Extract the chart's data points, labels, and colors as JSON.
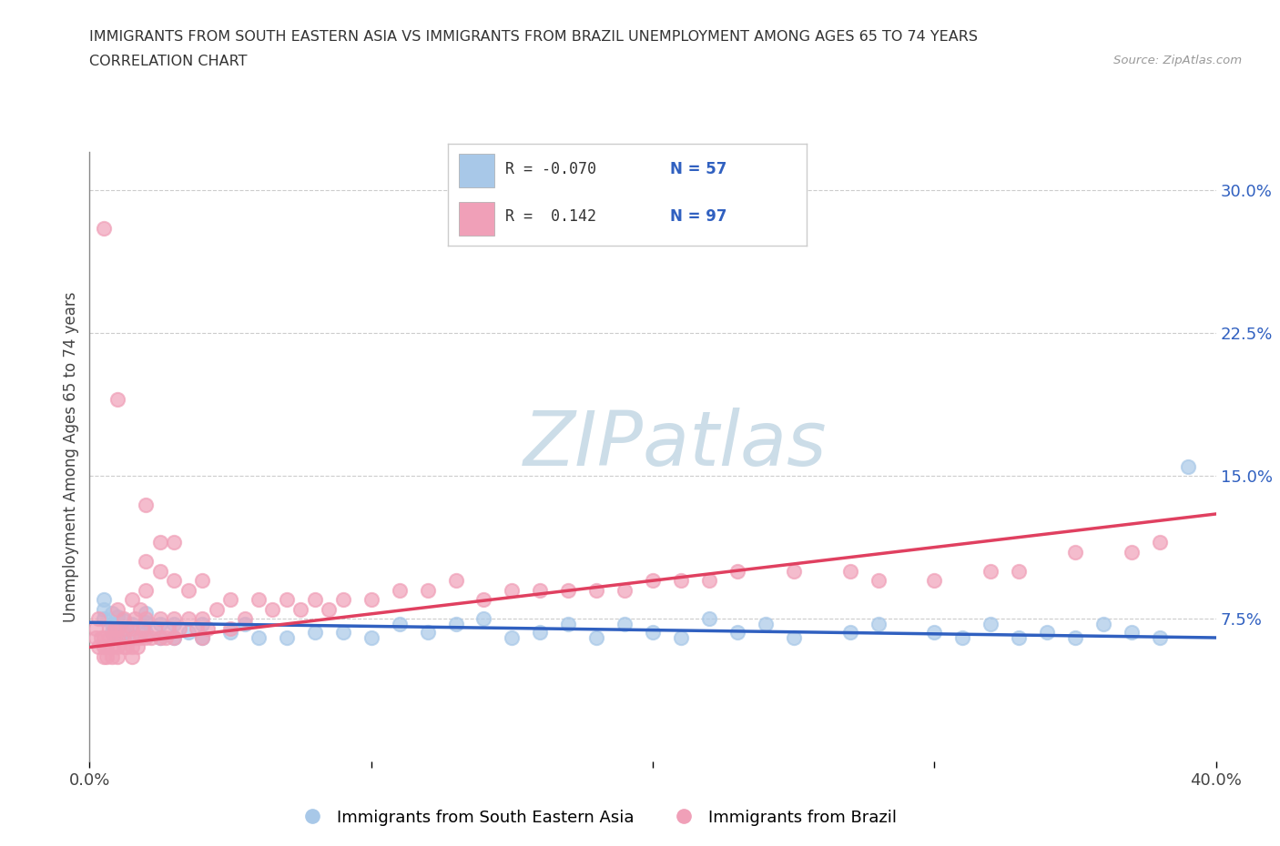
{
  "title_line1": "IMMIGRANTS FROM SOUTH EASTERN ASIA VS IMMIGRANTS FROM BRAZIL UNEMPLOYMENT AMONG AGES 65 TO 74 YEARS",
  "title_line2": "CORRELATION CHART",
  "source": "Source: ZipAtlas.com",
  "ylabel": "Unemployment Among Ages 65 to 74 years",
  "xlim": [
    0.0,
    0.4
  ],
  "ylim": [
    0.0,
    0.32
  ],
  "xticks": [
    0.0,
    0.1,
    0.2,
    0.3,
    0.4
  ],
  "xtick_labels": [
    "0.0%",
    "",
    "",
    "",
    "40.0%"
  ],
  "ytick_labels": [
    "",
    "7.5%",
    "15.0%",
    "22.5%",
    "30.0%"
  ],
  "yticks": [
    0.0,
    0.075,
    0.15,
    0.225,
    0.3
  ],
  "blue_color": "#a8c8e8",
  "pink_color": "#f0a0b8",
  "blue_line_color": "#3060c0",
  "pink_line_color": "#e04060",
  "grid_color": "#cccccc",
  "watermark_color": "#d8e8f0",
  "blue_R": -0.07,
  "blue_N": 57,
  "pink_R": 0.142,
  "pink_N": 97,
  "blue_trend_x0": 0.0,
  "blue_trend_y0": 0.073,
  "blue_trend_x1": 0.4,
  "blue_trend_y1": 0.065,
  "pink_trend_x0": 0.0,
  "pink_trend_y0": 0.06,
  "pink_trend_x1": 0.4,
  "pink_trend_y1": 0.13,
  "blue_scatter_x": [
    0.005,
    0.005,
    0.005,
    0.008,
    0.008,
    0.008,
    0.01,
    0.01,
    0.01,
    0.012,
    0.012,
    0.015,
    0.015,
    0.02,
    0.02,
    0.02,
    0.025,
    0.025,
    0.03,
    0.03,
    0.035,
    0.04,
    0.04,
    0.05,
    0.055,
    0.06,
    0.07,
    0.08,
    0.09,
    0.1,
    0.11,
    0.12,
    0.13,
    0.14,
    0.15,
    0.16,
    0.17,
    0.18,
    0.19,
    0.2,
    0.21,
    0.22,
    0.23,
    0.24,
    0.25,
    0.27,
    0.28,
    0.3,
    0.31,
    0.32,
    0.33,
    0.34,
    0.35,
    0.36,
    0.37,
    0.38,
    0.39
  ],
  "blue_scatter_y": [
    0.075,
    0.08,
    0.085,
    0.068,
    0.072,
    0.078,
    0.065,
    0.07,
    0.076,
    0.068,
    0.074,
    0.065,
    0.072,
    0.068,
    0.073,
    0.078,
    0.065,
    0.072,
    0.065,
    0.072,
    0.068,
    0.065,
    0.072,
    0.068,
    0.072,
    0.065,
    0.065,
    0.068,
    0.068,
    0.065,
    0.072,
    0.068,
    0.072,
    0.075,
    0.065,
    0.068,
    0.072,
    0.065,
    0.072,
    0.068,
    0.065,
    0.075,
    0.068,
    0.072,
    0.065,
    0.068,
    0.072,
    0.068,
    0.065,
    0.072,
    0.065,
    0.068,
    0.065,
    0.072,
    0.068,
    0.065,
    0.155
  ],
  "pink_scatter_x": [
    0.002,
    0.002,
    0.003,
    0.003,
    0.004,
    0.005,
    0.005,
    0.005,
    0.006,
    0.006,
    0.007,
    0.007,
    0.008,
    0.008,
    0.009,
    0.009,
    0.01,
    0.01,
    0.01,
    0.01,
    0.01,
    0.012,
    0.012,
    0.012,
    0.013,
    0.013,
    0.015,
    0.015,
    0.015,
    0.015,
    0.016,
    0.016,
    0.017,
    0.018,
    0.018,
    0.019,
    0.02,
    0.02,
    0.02,
    0.02,
    0.022,
    0.023,
    0.025,
    0.025,
    0.025,
    0.027,
    0.028,
    0.03,
    0.03,
    0.03,
    0.032,
    0.035,
    0.035,
    0.038,
    0.04,
    0.04,
    0.04,
    0.042,
    0.045,
    0.05,
    0.05,
    0.055,
    0.06,
    0.065,
    0.07,
    0.075,
    0.08,
    0.085,
    0.09,
    0.1,
    0.11,
    0.12,
    0.13,
    0.14,
    0.15,
    0.16,
    0.17,
    0.18,
    0.19,
    0.2,
    0.21,
    0.22,
    0.23,
    0.25,
    0.27,
    0.28,
    0.3,
    0.32,
    0.33,
    0.35,
    0.37,
    0.38,
    0.02,
    0.025,
    0.03,
    0.005,
    0.01
  ],
  "pink_scatter_y": [
    0.065,
    0.07,
    0.06,
    0.075,
    0.065,
    0.055,
    0.06,
    0.065,
    0.055,
    0.06,
    0.065,
    0.07,
    0.055,
    0.06,
    0.065,
    0.07,
    0.055,
    0.06,
    0.065,
    0.07,
    0.08,
    0.06,
    0.065,
    0.075,
    0.06,
    0.07,
    0.055,
    0.06,
    0.07,
    0.085,
    0.065,
    0.075,
    0.06,
    0.065,
    0.08,
    0.07,
    0.065,
    0.075,
    0.09,
    0.105,
    0.065,
    0.07,
    0.065,
    0.075,
    0.1,
    0.065,
    0.07,
    0.065,
    0.075,
    0.095,
    0.07,
    0.075,
    0.09,
    0.07,
    0.065,
    0.075,
    0.095,
    0.07,
    0.08,
    0.07,
    0.085,
    0.075,
    0.085,
    0.08,
    0.085,
    0.08,
    0.085,
    0.08,
    0.085,
    0.085,
    0.09,
    0.09,
    0.095,
    0.085,
    0.09,
    0.09,
    0.09,
    0.09,
    0.09,
    0.095,
    0.095,
    0.095,
    0.1,
    0.1,
    0.1,
    0.095,
    0.095,
    0.1,
    0.1,
    0.11,
    0.11,
    0.115,
    0.135,
    0.115,
    0.115,
    0.28,
    0.19
  ]
}
